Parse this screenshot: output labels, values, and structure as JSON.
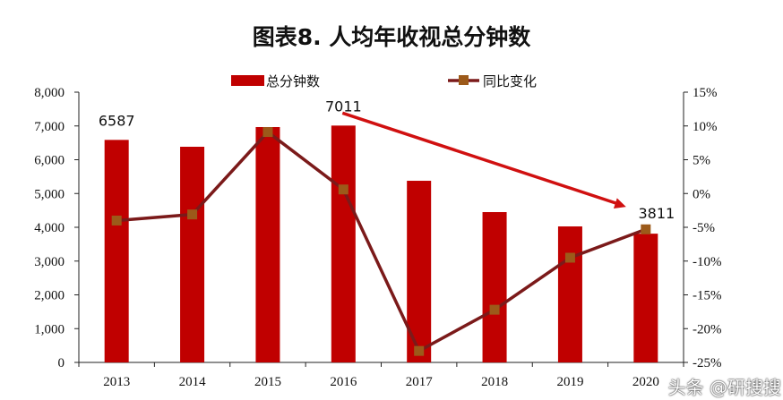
{
  "title": "图表8. 人均年收视总分钟数",
  "watermark": "头条 @研搜搜",
  "chart_data": {
    "type": "bar+line",
    "categories": [
      "2013",
      "2014",
      "2015",
      "2016",
      "2017",
      "2018",
      "2019",
      "2020"
    ],
    "series": [
      {
        "name": "总分钟数",
        "type": "bar",
        "axis": "left",
        "color": "#C00000",
        "values": [
          6587,
          6384,
          6967,
          7011,
          5377,
          4450,
          4026,
          3811
        ]
      },
      {
        "name": "同比变化",
        "type": "line",
        "axis": "right",
        "color": "#7B1A1A",
        "marker_color": "#9C5A1A",
        "values": [
          -4.0,
          -3.1,
          9.1,
          0.6,
          -23.3,
          -17.2,
          -9.5,
          -5.3
        ]
      }
    ],
    "data_labels": [
      {
        "category": "2013",
        "text": "6587"
      },
      {
        "category": "2016",
        "text": "7011"
      },
      {
        "category": "2020",
        "text": "3811"
      }
    ],
    "left_axis": {
      "ylim": [
        0,
        8000
      ],
      "ticks": [
        "0",
        "1,000",
        "2,000",
        "3,000",
        "4,000",
        "5,000",
        "6,000",
        "7,000",
        "8,000"
      ]
    },
    "right_axis": {
      "ylim": [
        -25,
        15
      ],
      "ticks": [
        "-25%",
        "-20%",
        "-15%",
        "-10%",
        "-5%",
        "0%",
        "5%",
        "10%",
        "15%"
      ]
    },
    "annotation": {
      "type": "arrow",
      "from": "2016",
      "to": "2020",
      "color": "#D01010"
    },
    "legend": "top",
    "grid": false
  }
}
